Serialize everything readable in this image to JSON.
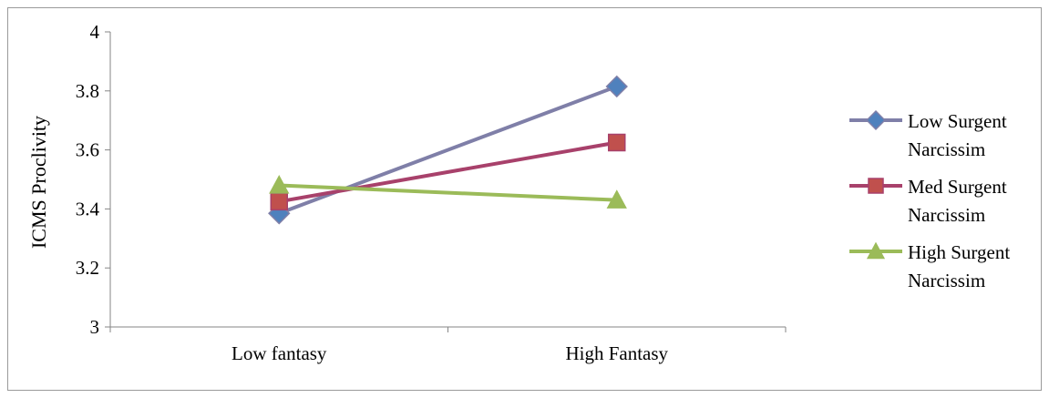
{
  "chart_data": {
    "type": "line",
    "title": "",
    "xlabel": "",
    "ylabel": "ICMS Proclivity",
    "categories": [
      "Low fantasy",
      "High Fantasy"
    ],
    "ylim": [
      3,
      4
    ],
    "yticks": [
      "3",
      "3.2",
      "3.4",
      "3.6",
      "3.8",
      "4"
    ],
    "grid": false,
    "legend_position": "right",
    "series": [
      {
        "name": "Low Surgent Narcissim",
        "values": [
          3.385,
          3.815
        ],
        "color": "#4f81bd",
        "line_color": "#7f7fa8",
        "marker": "diamond"
      },
      {
        "name": "Med Surgent Narcissim",
        "values": [
          3.425,
          3.625
        ],
        "color": "#c0504d",
        "line_color": "#a8416b",
        "marker": "square"
      },
      {
        "name": "High Surgent Narcissim",
        "values": [
          3.48,
          3.43
        ],
        "color": "#9bbb59",
        "line_color": "#9bbb59",
        "marker": "triangle"
      }
    ]
  }
}
